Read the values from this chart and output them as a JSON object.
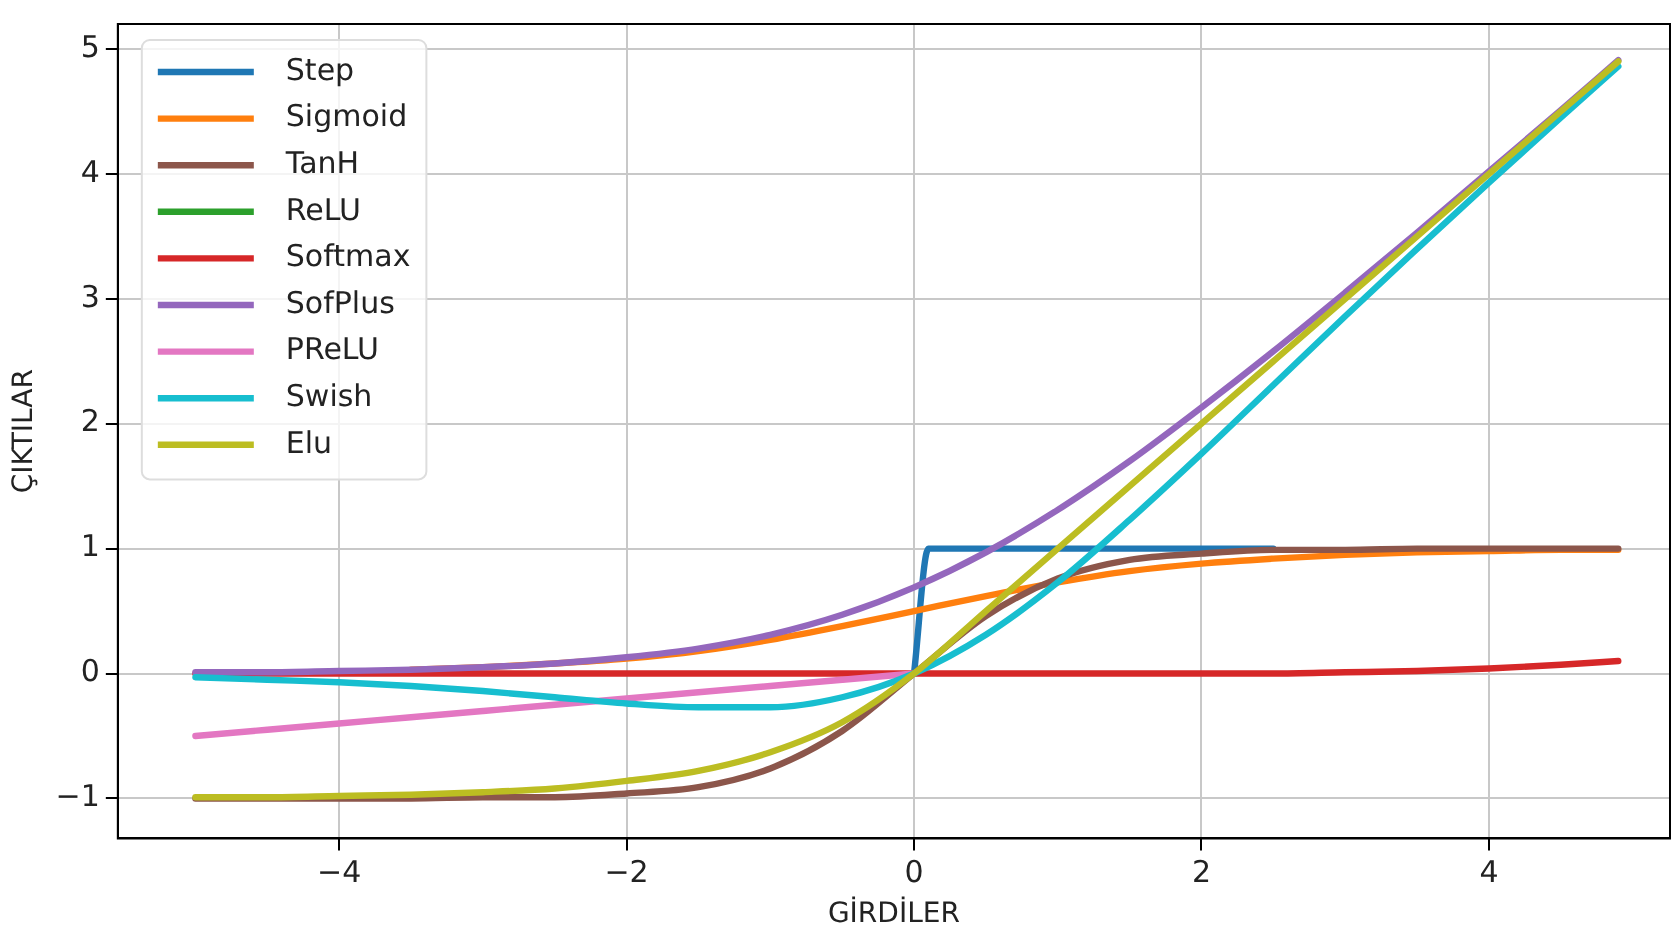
{
  "chart_data": {
    "type": "line",
    "xlabel": "GİRDİLER",
    "ylabel": "ÇIKTILAR",
    "xlim": [
      -5.54,
      5.26
    ],
    "ylim": [
      -1.32,
      5.2
    ],
    "xticks": [
      {
        "value": -4,
        "label": "−4"
      },
      {
        "value": -2,
        "label": "−2"
      },
      0,
      2,
      4
    ],
    "yticks": [
      {
        "value": -1,
        "label": "−1"
      },
      0,
      1,
      2,
      3,
      4,
      5
    ],
    "grid": true,
    "legend": "top left",
    "marker": "none",
    "line_style": "solid",
    "series": [
      {
        "name": "Step",
        "color": "#1f77b4",
        "x": [
          0,
          0.1,
          2.5
        ],
        "values": [
          0,
          1,
          1
        ]
      },
      {
        "name": "Sigmoid",
        "color": "#ff7f0e",
        "x": [
          -3.5,
          -3,
          -2.5,
          -2,
          -1.5,
          -1,
          -0.5,
          0,
          0.5,
          1,
          1.5,
          2,
          2.5,
          3,
          3.5,
          4,
          4.5,
          4.9
        ],
        "values": [
          0.03,
          0.05,
          0.08,
          0.12,
          0.18,
          0.27,
          0.38,
          0.5,
          0.62,
          0.73,
          0.82,
          0.88,
          0.92,
          0.95,
          0.97,
          0.98,
          0.99,
          0.99
        ]
      },
      {
        "name": "TanH",
        "color": "#8c564b",
        "x": [
          -5,
          -4.5,
          -4,
          -3.5,
          -3,
          -2.5,
          -2,
          -1.5,
          -1,
          -0.5,
          0,
          0.5,
          1,
          1.5,
          2,
          2.5,
          3,
          3.5,
          4,
          4.5,
          4.9
        ],
        "values": [
          -1,
          -1,
          -1,
          -1,
          -0.99,
          -0.99,
          -0.96,
          -0.91,
          -0.76,
          -0.46,
          0,
          0.46,
          0.76,
          0.91,
          0.96,
          0.99,
          0.99,
          1,
          1,
          1,
          1
        ]
      },
      {
        "name": "ReLU",
        "color": "#2ca02c"
      },
      {
        "name": "Softmax",
        "color": "#d62728",
        "x": [
          -5,
          -4.5,
          -4,
          -3.5,
          -3,
          -2.5,
          -2,
          -1.5,
          -1,
          -0.5,
          0,
          0.5,
          1,
          1.5,
          2,
          2.5,
          3,
          3.5,
          4,
          4.5,
          4.9
        ],
        "values": [
          0,
          0,
          0,
          0,
          0,
          0,
          0,
          0,
          0,
          0,
          0,
          0,
          0,
          0,
          0,
          0,
          0.01,
          0.02,
          0.04,
          0.07,
          0.1
        ]
      },
      {
        "name": "SofPlus",
        "color": "#9467bd",
        "x": [
          -5,
          -4.5,
          -4,
          -3.5,
          -3,
          -2.5,
          -2,
          -1.5,
          -1,
          -0.5,
          0,
          0.5,
          1,
          1.5,
          2,
          2.5,
          3,
          3.5,
          4,
          4.5,
          4.9
        ],
        "values": [
          0.01,
          0.01,
          0.02,
          0.03,
          0.05,
          0.08,
          0.13,
          0.2,
          0.31,
          0.47,
          0.69,
          0.97,
          1.31,
          1.7,
          2.13,
          2.58,
          3.05,
          3.53,
          4.02,
          4.51,
          4.91
        ]
      },
      {
        "name": "PReLU",
        "color": "#e377c2",
        "x": [
          -5,
          -4.5,
          -4,
          -3.5,
          -3,
          -2.5,
          -2,
          -1.5,
          -1,
          -0.5,
          0
        ],
        "values": [
          -0.5,
          -0.45,
          -0.4,
          -0.35,
          -0.3,
          -0.25,
          -0.2,
          -0.15,
          -0.1,
          -0.05,
          0
        ]
      },
      {
        "name": "Swish",
        "color": "#17becf",
        "x": [
          -5,
          -4.5,
          -4,
          -3.5,
          -3,
          -2.5,
          -2,
          -1.5,
          -1,
          -0.5,
          0,
          0.5,
          1,
          1.5,
          2,
          2.5,
          3,
          3.5,
          4,
          4.5,
          4.9
        ],
        "values": [
          -0.03,
          -0.05,
          -0.07,
          -0.1,
          -0.14,
          -0.19,
          -0.24,
          -0.27,
          -0.27,
          -0.19,
          0,
          0.31,
          0.73,
          1.23,
          1.76,
          2.31,
          2.86,
          3.4,
          3.93,
          4.45,
          4.86
        ]
      },
      {
        "name": "Elu",
        "color": "#bcbd22",
        "x": [
          -5,
          -4.5,
          -4,
          -3.5,
          -3,
          -2.5,
          -2,
          -1.5,
          -1,
          -0.5,
          0,
          0.5,
          1,
          1.5,
          2,
          2.5,
          3,
          3.5,
          4,
          4.5,
          4.9
        ],
        "values": [
          -0.99,
          -0.99,
          -0.98,
          -0.97,
          -0.95,
          -0.92,
          -0.86,
          -0.78,
          -0.63,
          -0.39,
          0,
          0.5,
          1,
          1.5,
          2,
          2.5,
          3,
          3.5,
          4,
          4.5,
          4.9
        ]
      }
    ]
  }
}
